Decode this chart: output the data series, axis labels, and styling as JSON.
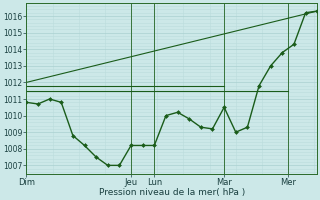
{
  "xlabel": "Pression niveau de la mer( hPa )",
  "background_color": "#cce8e8",
  "grid_color_major": "#aad0d0",
  "grid_color_minor": "#bbdcdc",
  "line_color": "#1a5c1a",
  "marker_color": "#1a5c1a",
  "ylim": [
    1006.5,
    1016.8
  ],
  "yticks": [
    1007,
    1008,
    1009,
    1010,
    1011,
    1012,
    1013,
    1014,
    1015,
    1016
  ],
  "day_labels": [
    "Dim",
    "Jeu",
    "Lun",
    "Mar",
    "Mer"
  ],
  "day_positions": [
    0,
    108,
    132,
    204,
    270
  ],
  "total_hours": 300,
  "vline_positions": [
    108,
    132,
    204,
    270
  ],
  "series": [
    {
      "x": [
        0,
        12,
        24,
        36,
        48,
        60,
        72,
        84,
        96,
        108,
        120,
        132,
        144,
        156,
        168,
        180,
        192,
        204,
        216,
        228,
        240,
        252,
        264,
        276,
        288,
        300
      ],
      "y": [
        1010.8,
        1010.7,
        1011.0,
        1010.8,
        1008.8,
        1008.2,
        1007.5,
        1007.0,
        1007.0,
        1008.2,
        1008.2,
        1008.2,
        1010.0,
        1010.2,
        1009.8,
        1009.3,
        1009.2,
        1010.5,
        1009.0,
        1009.3,
        1011.8,
        1013.0,
        1013.8,
        1014.3,
        1016.2,
        1016.3
      ],
      "has_markers": true,
      "linewidth": 1.0,
      "markersize": 2.0
    },
    {
      "x": [
        0,
        300
      ],
      "y": [
        1012.0,
        1016.3
      ],
      "has_markers": false,
      "linewidth": 0.8
    },
    {
      "x": [
        0,
        204
      ],
      "y": [
        1011.8,
        1011.8
      ],
      "has_markers": false,
      "linewidth": 0.8
    },
    {
      "x": [
        0,
        270
      ],
      "y": [
        1011.5,
        1011.5
      ],
      "has_markers": false,
      "linewidth": 0.8
    }
  ]
}
